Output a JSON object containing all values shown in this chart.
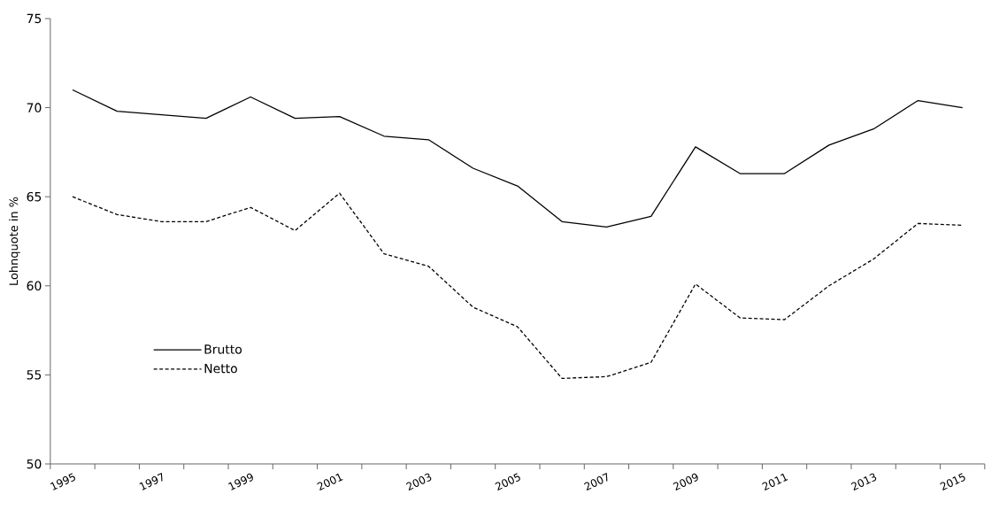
{
  "chart_data": {
    "type": "line",
    "ylabel": "Lohnquote in %",
    "categories": [
      "1995",
      null,
      "1997",
      null,
      "1999",
      null,
      "2001",
      null,
      "2003",
      null,
      "2005",
      null,
      "2007",
      null,
      "2009",
      null,
      "2011",
      null,
      "2013",
      null,
      "2015"
    ],
    "series": [
      {
        "name": "Brutto",
        "color": "#000000",
        "line_style": "solid",
        "values": [
          71.0,
          69.8,
          69.6,
          69.4,
          70.6,
          69.4,
          69.5,
          68.4,
          68.2,
          66.6,
          65.6,
          63.6,
          63.3,
          63.9,
          67.8,
          66.3,
          66.3,
          67.9,
          68.8,
          70.4,
          70.0
        ]
      },
      {
        "name": "Netto",
        "color": "#000000",
        "line_style": "dashed",
        "values": [
          65.0,
          64.0,
          63.6,
          63.6,
          64.4,
          63.1,
          65.2,
          61.8,
          61.1,
          58.8,
          57.7,
          54.8,
          54.9,
          55.7,
          60.1,
          58.2,
          58.1,
          60.0,
          61.5,
          63.5,
          63.4
        ]
      }
    ],
    "ylim": [
      50,
      75
    ],
    "yticks": [
      50,
      55,
      60,
      65,
      70,
      75
    ],
    "grid": false,
    "legend": "bottom left",
    "marker": "none"
  }
}
